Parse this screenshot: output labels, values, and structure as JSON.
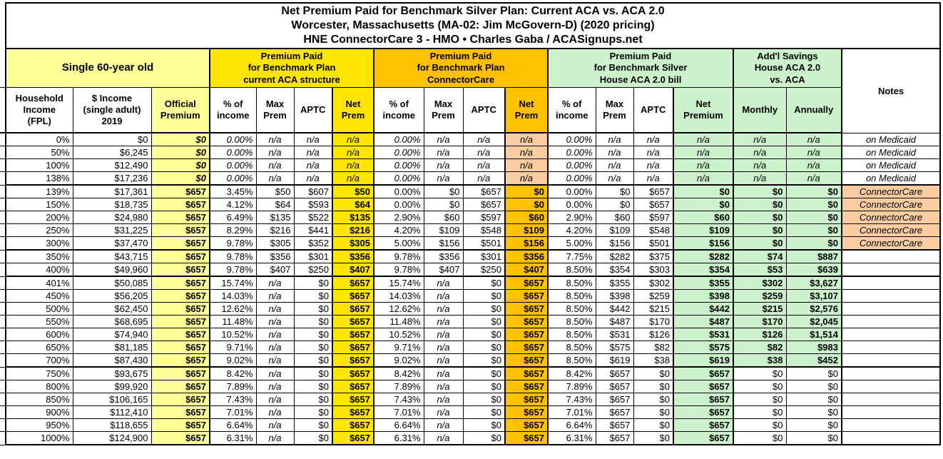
{
  "title": "Net Premium Paid for Benchmark Silver Plan: Current ACA vs. ACA 2.0\nWorcester, Massachusetts (MA-02: Jim McGovern-D) (2020 pricing)\nHNE ConnectorCare 3 - HMO • Charles Gaba / ACASignups.net",
  "groups": {
    "demographic": "Single 60-year old",
    "aca": "Premium Paid\nfor Benchmark Plan\ncurrent ACA structure",
    "connectorcare": "Premium Paid\nfor Benchmark Plan\nConnectorCare",
    "house": "Premium Paid\nfor Benchmark Silver\nHouse ACA 2.0 bill",
    "savings": "Add'l Savings\nHouse ACA 2.0\nvs. ACA",
    "notes": "Notes"
  },
  "columns": [
    "Household\nIncome\n(FPL)",
    "$ Income\n(single adult)\n2019",
    "Official\nPremium",
    "% of\nincome",
    "Max\nPrem",
    "APTC",
    "Net\nPrem",
    "% of\nincome",
    "Max\nPrem",
    "APTC",
    "Net\nPrem",
    "% of\nincome",
    "Max\nPrem",
    "APTC",
    "Net\nPremium",
    "Monthly",
    "Annually"
  ],
  "colors": {
    "border": "#000000",
    "light_yellow": "#FFFF99",
    "yellow": "#FFE500",
    "orange": "#FFC000",
    "green": "#CCF2CC",
    "peach": "#FBCDA0"
  },
  "rows": [
    {
      "band": "medicaid",
      "cells": [
        "0%",
        "$0",
        "$0",
        "0.00%",
        "n/a",
        "n/a",
        "n/a",
        "0.00%",
        "n/a",
        "n/a",
        "n/a",
        "0.00%",
        "n/a",
        "n/a",
        "n/a",
        "n/a",
        "n/a",
        "on Medicaid"
      ]
    },
    {
      "band": "medicaid",
      "cells": [
        "50%",
        "$6,245",
        "$0",
        "0.00%",
        "n/a",
        "n/a",
        "n/a",
        "0.00%",
        "n/a",
        "n/a",
        "n/a",
        "0.00%",
        "n/a",
        "n/a",
        "n/a",
        "n/a",
        "n/a",
        "on Medicaid"
      ]
    },
    {
      "band": "medicaid",
      "cells": [
        "100%",
        "$12,490",
        "$0",
        "0.00%",
        "n/a",
        "n/a",
        "n/a",
        "0.00%",
        "n/a",
        "n/a",
        "n/a",
        "0.00%",
        "n/a",
        "n/a",
        "n/a",
        "n/a",
        "n/a",
        "on Medicaid"
      ]
    },
    {
      "band": "medicaid",
      "cells": [
        "138%",
        "$17,236",
        "$0",
        "0.00%",
        "n/a",
        "n/a",
        "n/a",
        "0.00%",
        "n/a",
        "n/a",
        "n/a",
        "0.00%",
        "n/a",
        "n/a",
        "n/a",
        "n/a",
        "n/a",
        "on Medicaid"
      ]
    },
    {
      "band": "connectorcare",
      "sep": true,
      "cells": [
        "139%",
        "$17,361",
        "$657",
        "3.45%",
        "$50",
        "$607",
        "$50",
        "0.00%",
        "$0",
        "$657",
        "$0",
        "0.00%",
        "$0",
        "$657",
        "$0",
        "$0",
        "$0",
        "ConnectorCare"
      ]
    },
    {
      "band": "connectorcare",
      "cells": [
        "150%",
        "$18,735",
        "$657",
        "4.12%",
        "$64",
        "$593",
        "$64",
        "0.00%",
        "$0",
        "$657",
        "$0",
        "0.00%",
        "$0",
        "$657",
        "$0",
        "$0",
        "$0",
        "ConnectorCare"
      ]
    },
    {
      "band": "connectorcare",
      "cells": [
        "200%",
        "$24,980",
        "$657",
        "6.49%",
        "$135",
        "$522",
        "$135",
        "2.90%",
        "$60",
        "$597",
        "$60",
        "2.90%",
        "$60",
        "$597",
        "$60",
        "$0",
        "$0",
        "ConnectorCare"
      ]
    },
    {
      "band": "connectorcare",
      "cells": [
        "250%",
        "$31,225",
        "$657",
        "8.29%",
        "$216",
        "$441",
        "$216",
        "4.20%",
        "$109",
        "$548",
        "$109",
        "4.20%",
        "$109",
        "$548",
        "$109",
        "$0",
        "$0",
        "ConnectorCare"
      ]
    },
    {
      "band": "connectorcare",
      "cells": [
        "300%",
        "$37,470",
        "$657",
        "9.78%",
        "$305",
        "$352",
        "$305",
        "5.00%",
        "$156",
        "$501",
        "$156",
        "5.00%",
        "$156",
        "$501",
        "$156",
        "$0",
        "$0",
        "ConnectorCare"
      ]
    },
    {
      "band": "partial",
      "sep": true,
      "cells": [
        "350%",
        "$43,715",
        "$657",
        "9.78%",
        "$356",
        "$301",
        "$356",
        "9.78%",
        "$356",
        "$301",
        "$356",
        "7.75%",
        "$282",
        "$375",
        "$282",
        "$74",
        "$887",
        ""
      ]
    },
    {
      "band": "partial",
      "cells": [
        "400%",
        "$49,960",
        "$657",
        "9.78%",
        "$407",
        "$250",
        "$407",
        "9.78%",
        "$407",
        "$250",
        "$407",
        "8.50%",
        "$354",
        "$303",
        "$354",
        "$53",
        "$639",
        ""
      ]
    },
    {
      "band": "unsub",
      "sep": true,
      "cells": [
        "401%",
        "$50,085",
        "$657",
        "15.74%",
        "n/a",
        "$0",
        "$657",
        "15.74%",
        "n/a",
        "$0",
        "$657",
        "8.50%",
        "$355",
        "$302",
        "$355",
        "$302",
        "$3,627",
        ""
      ]
    },
    {
      "band": "unsub",
      "cells": [
        "450%",
        "$56,205",
        "$657",
        "14.03%",
        "n/a",
        "$0",
        "$657",
        "14.03%",
        "n/a",
        "$0",
        "$657",
        "8.50%",
        "$398",
        "$259",
        "$398",
        "$259",
        "$3,107",
        ""
      ]
    },
    {
      "band": "unsub",
      "cells": [
        "500%",
        "$62,450",
        "$657",
        "12.62%",
        "n/a",
        "$0",
        "$657",
        "12.62%",
        "n/a",
        "$0",
        "$657",
        "8.50%",
        "$442",
        "$215",
        "$442",
        "$215",
        "$2,576",
        ""
      ]
    },
    {
      "band": "unsub",
      "cells": [
        "550%",
        "$68,695",
        "$657",
        "11.48%",
        "n/a",
        "$0",
        "$657",
        "11.48%",
        "n/a",
        "$0",
        "$657",
        "8.50%",
        "$487",
        "$170",
        "$487",
        "$170",
        "$2,045",
        ""
      ]
    },
    {
      "band": "unsub",
      "cells": [
        "600%",
        "$74,940",
        "$657",
        "10.52%",
        "n/a",
        "$0",
        "$657",
        "10.52%",
        "n/a",
        "$0",
        "$657",
        "8.50%",
        "$531",
        "$126",
        "$531",
        "$126",
        "$1,514",
        ""
      ]
    },
    {
      "band": "unsub",
      "cells": [
        "650%",
        "$81,185",
        "$657",
        "9.71%",
        "n/a",
        "$0",
        "$657",
        "9.71%",
        "n/a",
        "$0",
        "$657",
        "8.50%",
        "$575",
        "$82",
        "$575",
        "$82",
        "$983",
        ""
      ]
    },
    {
      "band": "unsub",
      "cells": [
        "700%",
        "$87,430",
        "$657",
        "9.02%",
        "n/a",
        "$0",
        "$657",
        "9.02%",
        "n/a",
        "$0",
        "$657",
        "8.50%",
        "$619",
        "$38",
        "$619",
        "$38",
        "$452",
        ""
      ]
    },
    {
      "band": "fullprice",
      "sep": true,
      "cells": [
        "750%",
        "$93,675",
        "$657",
        "8.42%",
        "n/a",
        "$0",
        "$657",
        "8.42%",
        "n/a",
        "$0",
        "$657",
        "8.42%",
        "$657",
        "$0",
        "$657",
        "$0",
        "$0",
        ""
      ]
    },
    {
      "band": "fullprice",
      "cells": [
        "800%",
        "$99,920",
        "$657",
        "7.89%",
        "n/a",
        "$0",
        "$657",
        "7.89%",
        "n/a",
        "$0",
        "$657",
        "7.89%",
        "$657",
        "$0",
        "$657",
        "$0",
        "$0",
        ""
      ]
    },
    {
      "band": "fullprice",
      "cells": [
        "850%",
        "$106,165",
        "$657",
        "7.43%",
        "n/a",
        "$0",
        "$657",
        "7.43%",
        "n/a",
        "$0",
        "$657",
        "7.43%",
        "$657",
        "$0",
        "$657",
        "$0",
        "$0",
        ""
      ]
    },
    {
      "band": "fullprice",
      "cells": [
        "900%",
        "$112,410",
        "$657",
        "7.01%",
        "n/a",
        "$0",
        "$657",
        "7.01%",
        "n/a",
        "$0",
        "$657",
        "7.01%",
        "$657",
        "$0",
        "$657",
        "$0",
        "$0",
        ""
      ]
    },
    {
      "band": "fullprice",
      "cells": [
        "950%",
        "$118,655",
        "$657",
        "6.64%",
        "n/a",
        "$0",
        "$657",
        "6.64%",
        "n/a",
        "$0",
        "$657",
        "6.64%",
        "$657",
        "$0",
        "$657",
        "$0",
        "$0",
        ""
      ]
    },
    {
      "band": "fullprice",
      "cells": [
        "1000%",
        "$124,900",
        "$657",
        "6.31%",
        "n/a",
        "$0",
        "$657",
        "6.31%",
        "n/a",
        "$0",
        "$657",
        "6.31%",
        "$657",
        "$0",
        "$657",
        "$0",
        "$0",
        ""
      ]
    }
  ]
}
